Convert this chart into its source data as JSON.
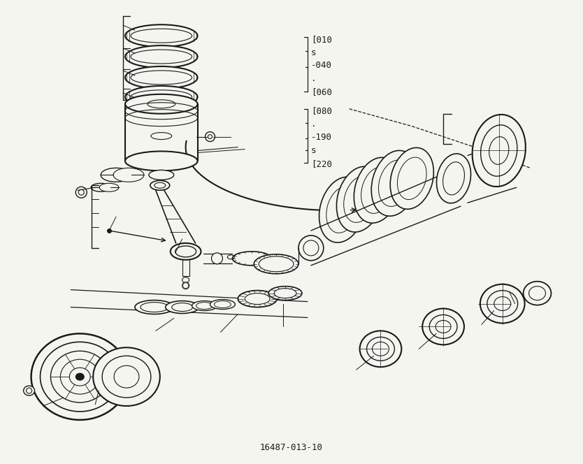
{
  "background_color": "#f5f5f0",
  "line_color": "#1a1a1a",
  "figure_width": 8.34,
  "figure_height": 6.64,
  "dpi": 100,
  "footer_text": "16487-013-10",
  "part_lines_group1": [
    "[010",
    "s",
    "-040",
    ".",
    "[060"
  ],
  "part_lines_group2": [
    "[080",
    ".",
    "-190",
    "s",
    "[220"
  ]
}
